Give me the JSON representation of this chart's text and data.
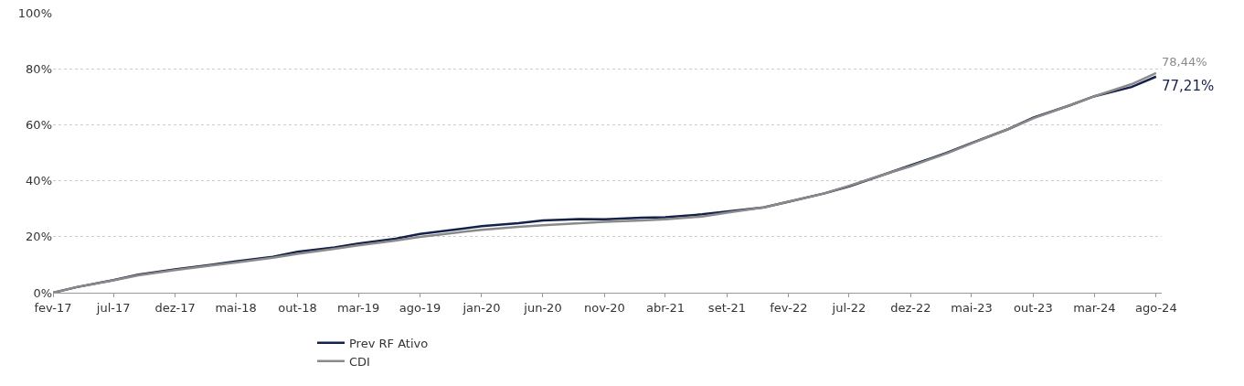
{
  "chart_data": {
    "type": "line",
    "legend": "bottom",
    "grid": "y",
    "line_style": "solid",
    "marker": "none",
    "ylim": [
      0,
      100
    ],
    "yticks": [
      {
        "value": 0,
        "label": "0%"
      },
      {
        "value": 20,
        "label": "20%"
      },
      {
        "value": 40,
        "label": "40%"
      },
      {
        "value": 60,
        "label": "60%"
      },
      {
        "value": 80,
        "label": "80%"
      },
      {
        "value": 100,
        "label": "100%"
      }
    ],
    "xlim": [
      "2017-02",
      "2024-08-15"
    ],
    "xticks": [
      {
        "value": "2017-02",
        "label": "fev-17"
      },
      {
        "value": "2017-07",
        "label": "jul-17"
      },
      {
        "value": "2017-12",
        "label": "dez-17"
      },
      {
        "value": "2018-05",
        "label": "mai-18"
      },
      {
        "value": "2018-10",
        "label": "out-18"
      },
      {
        "value": "2019-03",
        "label": "mar-19"
      },
      {
        "value": "2019-08",
        "label": "ago-19"
      },
      {
        "value": "2020-01",
        "label": "jan-20"
      },
      {
        "value": "2020-06",
        "label": "jun-20"
      },
      {
        "value": "2020-11",
        "label": "nov-20"
      },
      {
        "value": "2021-04",
        "label": "abr-21"
      },
      {
        "value": "2021-09",
        "label": "set-21"
      },
      {
        "value": "2022-02",
        "label": "fev-22"
      },
      {
        "value": "2022-07",
        "label": "jul-22"
      },
      {
        "value": "2022-12",
        "label": "dez-22"
      },
      {
        "value": "2023-05",
        "label": "mai-23"
      },
      {
        "value": "2023-10",
        "label": "out-23"
      },
      {
        "value": "2024-03",
        "label": "mar-24"
      },
      {
        "value": "2024-08",
        "label": "ago-24"
      }
    ],
    "x": [
      "2017-02",
      "2017-04",
      "2017-07",
      "2017-09",
      "2017-12",
      "2018-03",
      "2018-05",
      "2018-08",
      "2018-10",
      "2019-01",
      "2019-03",
      "2019-06",
      "2019-08",
      "2019-11",
      "2020-01",
      "2020-04",
      "2020-06",
      "2020-09",
      "2020-11",
      "2021-02",
      "2021-04",
      "2021-07",
      "2021-09",
      "2021-12",
      "2022-02",
      "2022-05",
      "2022-07",
      "2022-10",
      "2022-12",
      "2023-03",
      "2023-05",
      "2023-08",
      "2023-10",
      "2024-01",
      "2024-03",
      "2024-06",
      "2024-08"
    ],
    "series": [
      {
        "name": "Prev RF Ativo",
        "color": "#14214a",
        "values": [
          0,
          2,
          4.5,
          6.5,
          8.3,
          10,
          11.2,
          12.8,
          14.6,
          16.2,
          17.6,
          19.3,
          21,
          22.6,
          23.8,
          24.8,
          25.8,
          26.3,
          26.2,
          26.8,
          27,
          28,
          29,
          30.5,
          32.5,
          35.5,
          38,
          42.5,
          45.5,
          50,
          53.5,
          58.5,
          62.5,
          67,
          70.2,
          73.5,
          77.21
        ]
      },
      {
        "name": "CDI",
        "color": "#8a8a8a",
        "values": [
          0,
          2,
          4.4,
          6.2,
          8.1,
          9.7,
          10.8,
          12.5,
          13.9,
          15.7,
          16.9,
          18.6,
          19.9,
          21.5,
          22.5,
          23.5,
          24.1,
          24.8,
          25.3,
          25.8,
          26.2,
          27.2,
          28.6,
          30.5,
          32.5,
          35.5,
          38.2,
          42.5,
          45.2,
          49.8,
          53.3,
          58.5,
          62.3,
          67,
          70.2,
          74.5,
          78.44
        ]
      }
    ],
    "annotations": [
      {
        "text": "77,21%",
        "x": "2024-08",
        "y": 77.21
      },
      {
        "text": "78,44%",
        "x": "2024-08",
        "y": 78.44
      }
    ]
  }
}
